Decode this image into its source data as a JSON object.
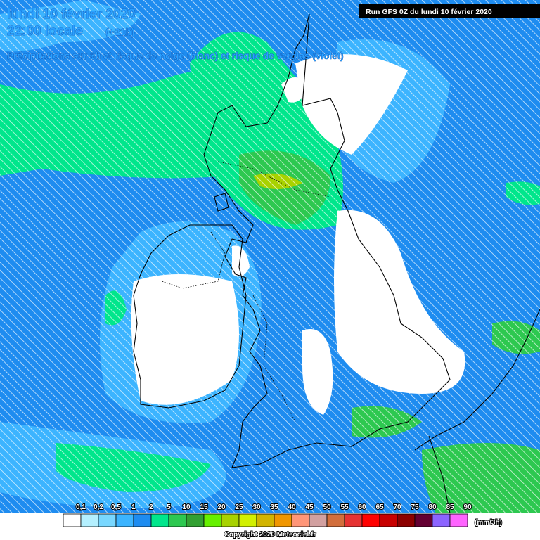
{
  "header": {
    "date": "lundi 10 février 2020",
    "time": "22:00 locale",
    "lead": "(+21h)",
    "subtitle": "Précipitations sur 3h et risque de neige (blanc) et risque de verglas (violet)",
    "run": "Run GFS 0Z du lundi 10 février 2020"
  },
  "legend": {
    "unit": "(mm/3h)",
    "items": [
      {
        "label": "0,1",
        "color": "#ffffff"
      },
      {
        "label": "0,2",
        "color": "#b4f0ff"
      },
      {
        "label": "0,5",
        "color": "#78d7ff"
      },
      {
        "label": "1",
        "color": "#3cb4ff"
      },
      {
        "label": "2",
        "color": "#1e8cf0"
      },
      {
        "label": "5",
        "color": "#00e68c"
      },
      {
        "label": "10",
        "color": "#2dc850"
      },
      {
        "label": "15",
        "color": "#32a032"
      },
      {
        "label": "20",
        "color": "#66f000"
      },
      {
        "label": "25",
        "color": "#a8d200"
      },
      {
        "label": "30",
        "color": "#d2f000"
      },
      {
        "label": "35",
        "color": "#d2b400"
      },
      {
        "label": "40",
        "color": "#f09600"
      },
      {
        "label": "45",
        "color": "#ff9678"
      },
      {
        "label": "50",
        "color": "#d2a0a0"
      },
      {
        "label": "55",
        "color": "#d26e3c"
      },
      {
        "label": "60",
        "color": "#e63232"
      },
      {
        "label": "65",
        "color": "#ff0000"
      },
      {
        "label": "70",
        "color": "#c80000"
      },
      {
        "label": "75",
        "color": "#8c0000"
      },
      {
        "label": "80",
        "color": "#640032"
      },
      {
        "label": "85",
        "color": "#8c64ff"
      },
      {
        "label": "90",
        "color": "#ff64ff"
      }
    ]
  },
  "footer": {
    "copyright": "Copyright 2020 Meteociel.fr"
  }
}
